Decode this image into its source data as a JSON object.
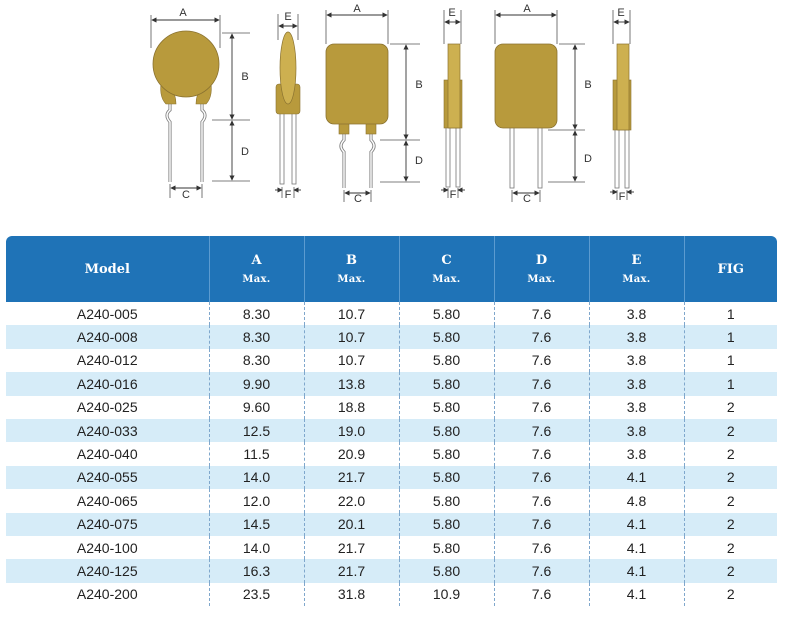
{
  "figures": {
    "fig1_top": {
      "a": "A",
      "b": "B",
      "d": "D",
      "c": "C"
    },
    "fig1_side": {
      "e": "E",
      "f": "F"
    },
    "fig2_top": {
      "a": "A",
      "b": "B",
      "d": "D",
      "c": "C"
    },
    "fig2_side": {
      "e": "E",
      "f": "F"
    },
    "fig3_top": {
      "a": "A",
      "b": "B",
      "d": "D",
      "c": "C"
    },
    "fig3_side": {
      "e": "E",
      "f": "F"
    },
    "body_color": "#b89a3c",
    "body_color_light": "#cdb050"
  },
  "table": {
    "header_color": "#1f73b7",
    "stripe_color": "#d6ecf8",
    "columns": [
      {
        "label": "Model",
        "sub": ""
      },
      {
        "label": "A",
        "sub": "Max."
      },
      {
        "label": "B",
        "sub": "Max."
      },
      {
        "label": "C",
        "sub": "Max."
      },
      {
        "label": "D",
        "sub": "Max."
      },
      {
        "label": "E",
        "sub": "Max."
      },
      {
        "label": "FIG",
        "sub": ""
      }
    ],
    "rows": [
      [
        "A240-005",
        "8.30",
        "10.7",
        "5.80",
        "7.6",
        "3.8",
        "1"
      ],
      [
        "A240-008",
        "8.30",
        "10.7",
        "5.80",
        "7.6",
        "3.8",
        "1"
      ],
      [
        "A240-012",
        "8.30",
        "10.7",
        "5.80",
        "7.6",
        "3.8",
        "1"
      ],
      [
        "A240-016",
        "9.90",
        "13.8",
        "5.80",
        "7.6",
        "3.8",
        "1"
      ],
      [
        "A240-025",
        "9.60",
        "18.8",
        "5.80",
        "7.6",
        "3.8",
        "2"
      ],
      [
        "A240-033",
        "12.5",
        "19.0",
        "5.80",
        "7.6",
        "3.8",
        "2"
      ],
      [
        "A240-040",
        "11.5",
        "20.9",
        "5.80",
        "7.6",
        "3.8",
        "2"
      ],
      [
        "A240-055",
        "14.0",
        "21.7",
        "5.80",
        "7.6",
        "4.1",
        "2"
      ],
      [
        "A240-065",
        "12.0",
        "22.0",
        "5.80",
        "7.6",
        "4.8",
        "2"
      ],
      [
        "A240-075",
        "14.5",
        "20.1",
        "5.80",
        "7.6",
        "4.1",
        "2"
      ],
      [
        "A240-100",
        "14.0",
        "21.7",
        "5.80",
        "7.6",
        "4.1",
        "2"
      ],
      [
        "A240-125",
        "16.3",
        "21.7",
        "5.80",
        "7.6",
        "4.1",
        "2"
      ],
      [
        "A240-200",
        "23.5",
        "31.8",
        "10.9",
        "7.6",
        "4.1",
        "2"
      ]
    ]
  }
}
